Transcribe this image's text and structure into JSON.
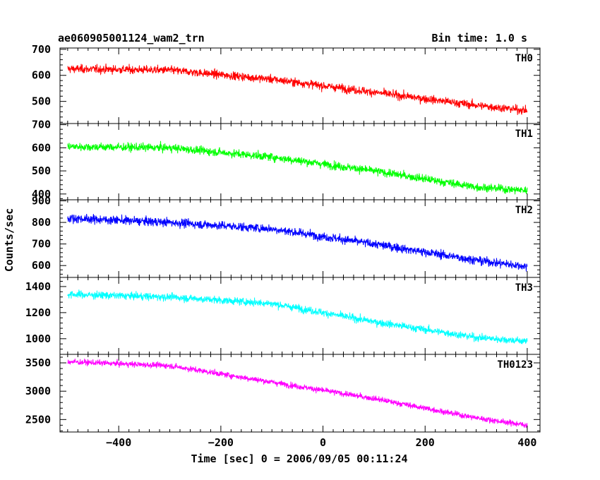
{
  "header": {
    "title": "ae060905001124_wam2_trn",
    "bin_time": "Bin time: 1.0 s"
  },
  "chart_data": {
    "type": "line",
    "xlabel": "Time [sec] 0 = 2006/09/05 00:11:24",
    "ylabel": "Counts/sec",
    "xlim": [
      -515,
      425
    ],
    "x_range": [
      -500,
      400
    ],
    "x_ticks": [
      -400,
      -200,
      0,
      200,
      400
    ],
    "panels": [
      {
        "name": "TH0",
        "color": "#ff0000",
        "ylim": [
          415,
          705
        ],
        "yticks": [
          500,
          600,
          700
        ],
        "trend": [
          [
            -500,
            625
          ],
          [
            -300,
            620
          ],
          [
            -100,
            585
          ],
          [
            100,
            535
          ],
          [
            300,
            485
          ],
          [
            400,
            465
          ]
        ],
        "noise": 25
      },
      {
        "name": "TH1",
        "color": "#00ff00",
        "ylim": [
          375,
          705
        ],
        "yticks": [
          400,
          500,
          600,
          700
        ],
        "trend": [
          [
            -500,
            605
          ],
          [
            -300,
            600
          ],
          [
            -100,
            560
          ],
          [
            100,
            500
          ],
          [
            300,
            430
          ],
          [
            400,
            415
          ]
        ],
        "noise": 28
      },
      {
        "name": "TH2",
        "color": "#0000ff",
        "ylim": [
          545,
          905
        ],
        "yticks": [
          600,
          700,
          800,
          900
        ],
        "trend": [
          [
            -500,
            820
          ],
          [
            -300,
            800
          ],
          [
            -100,
            770
          ],
          [
            100,
            700
          ],
          [
            300,
            625
          ],
          [
            400,
            595
          ]
        ],
        "noise": 32
      },
      {
        "name": "TH3",
        "color": "#00ffff",
        "ylim": [
          880,
          1470
        ],
        "yticks": [
          1000,
          1200,
          1400
        ],
        "trend": [
          [
            -500,
            1340
          ],
          [
            -300,
            1320
          ],
          [
            -100,
            1270
          ],
          [
            100,
            1130
          ],
          [
            300,
            1010
          ],
          [
            400,
            980
          ]
        ],
        "noise": 45
      },
      {
        "name": "TH0123",
        "color": "#ff00ff",
        "ylim": [
          2280,
          3650
        ],
        "yticks": [
          2500,
          3000,
          3500
        ],
        "trend": [
          [
            -500,
            3520
          ],
          [
            -300,
            3450
          ],
          [
            -100,
            3160
          ],
          [
            100,
            2870
          ],
          [
            300,
            2530
          ],
          [
            400,
            2400
          ]
        ],
        "noise": 80
      }
    ]
  }
}
